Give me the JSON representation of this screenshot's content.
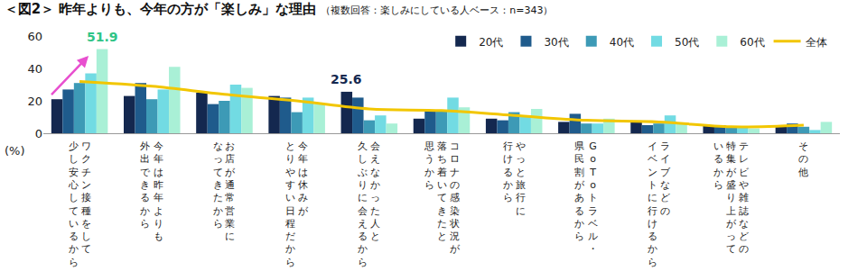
{
  "chart_data": {
    "type": "bar",
    "title": "＜図2＞ 昨年よりも、今年の方が「楽しみ」な理由",
    "subtitle": "（複数回答：楽しみにしている人ベース：n=343）",
    "y_label": "(%)",
    "categories": [
      "ワクチン接種をして\n少し安心しているから",
      "今年は昨年よりも\n外出できるから",
      "お店が通常営業に\nなってきたから",
      "今年は休みが\nとりやすい日程だから",
      "会えなかった人と\n久しぶりに会えるから",
      "コロナの感染状況が\n落ち着いてきたと\n思うから",
      "やっと旅行に\n行けるから",
      "GoToトラベル・\n県民割があるから",
      "ライブなどの\nイベントに行けるから",
      "テレビや雑誌などの\n特集が盛り上がって\nいるから",
      "その他"
    ],
    "series": [
      {
        "name": "20代",
        "color": "#14284f",
        "values": [
          21,
          23,
          25,
          23,
          25.6,
          9,
          9,
          7,
          7,
          5,
          5
        ]
      },
      {
        "name": "30代",
        "color": "#1f5b8c",
        "values": [
          27,
          31,
          18,
          22,
          22,
          14,
          8,
          12,
          5,
          5,
          6
        ]
      },
      {
        "name": "40代",
        "color": "#3d9ab6",
        "values": [
          31,
          21,
          20,
          13,
          8,
          14,
          13,
          6,
          6,
          4,
          4
        ]
      },
      {
        "name": "50代",
        "color": "#72dbe3",
        "values": [
          37,
          27,
          30,
          22,
          11,
          22,
          11,
          6,
          11,
          4,
          2
        ]
      },
      {
        "name": "60代",
        "color": "#a9f0d6",
        "values": [
          51.9,
          41,
          28,
          18,
          6,
          16,
          15,
          9,
          6,
          3,
          7
        ]
      },
      {
        "name": "全体",
        "type": "line",
        "color": "#f2c600",
        "line_style": "solid",
        "values": [
          32,
          29,
          24,
          20,
          15,
          14,
          11,
          8,
          7,
          4,
          5
        ]
      }
    ],
    "annotations": [
      {
        "text": "51.9",
        "series": "60代",
        "category": "ワクチン接種をして\n少し安心しているから",
        "color": "#2fc486"
      },
      {
        "text": "25.6",
        "series": "20代",
        "category": "会えなかった人と\n久しぶりに会えるから",
        "color": "#14284f"
      }
    ],
    "ylim": [
      0,
      60
    ],
    "yticks": [
      0,
      20,
      40,
      60
    ],
    "grid": false,
    "legend": "top"
  }
}
